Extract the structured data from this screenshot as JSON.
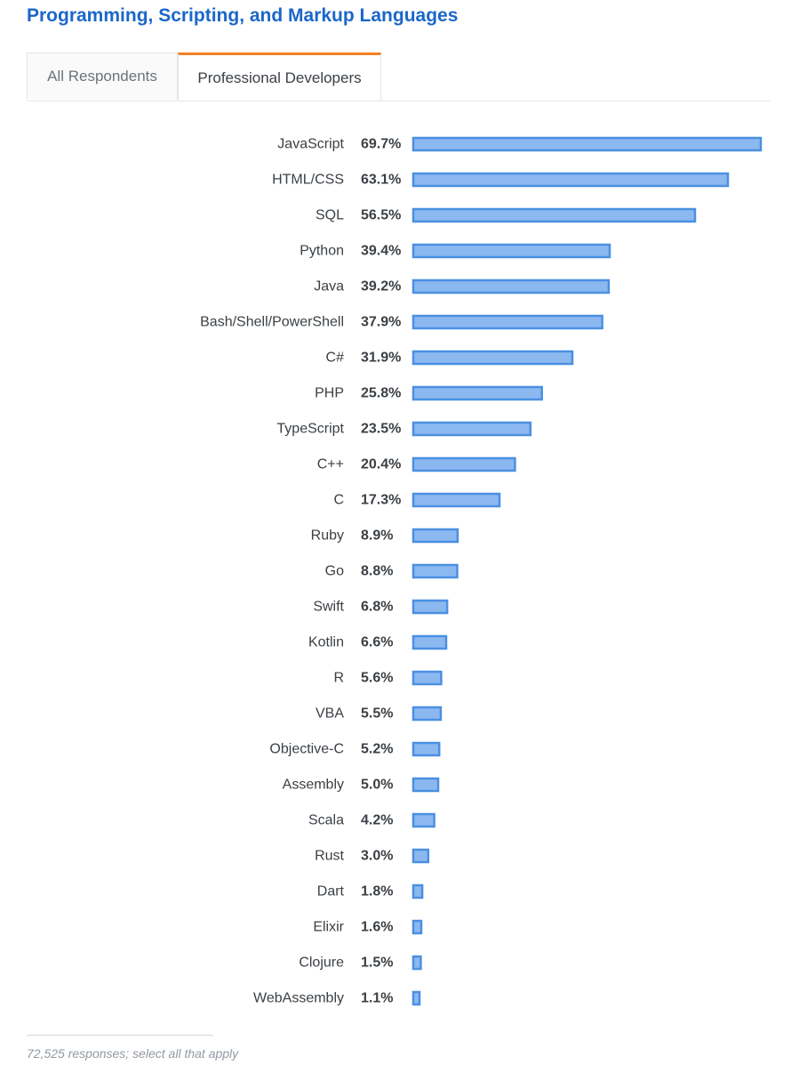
{
  "tabs": [
    {
      "label": "All Respondents",
      "active": false
    },
    {
      "label": "Professional Developers",
      "active": true
    }
  ],
  "footnote": "72,525 responses; select all that apply",
  "colors": {
    "title": "#1b67c9",
    "bar_fill": "#8cb8f0",
    "bar_stroke": "#4a90e2",
    "tab_accent": "#f48024"
  },
  "chart_data": {
    "type": "bar",
    "orientation": "horizontal",
    "title": "Programming, Scripting, and Markup Languages",
    "categories": [
      "JavaScript",
      "HTML/CSS",
      "SQL",
      "Python",
      "Java",
      "Bash/Shell/PowerShell",
      "C#",
      "PHP",
      "TypeScript",
      "C++",
      "C",
      "Ruby",
      "Go",
      "Swift",
      "Kotlin",
      "R",
      "VBA",
      "Objective-C",
      "Assembly",
      "Scala",
      "Rust",
      "Dart",
      "Elixir",
      "Clojure",
      "WebAssembly"
    ],
    "values": [
      69.7,
      63.1,
      56.5,
      39.4,
      39.2,
      37.9,
      31.9,
      25.8,
      23.5,
      20.4,
      17.3,
      8.9,
      8.8,
      6.8,
      6.6,
      5.6,
      5.5,
      5.2,
      5.0,
      4.2,
      3.0,
      1.8,
      1.6,
      1.5,
      1.1
    ],
    "value_labels": [
      "69.7%",
      "63.1%",
      "56.5%",
      "39.4%",
      "39.2%",
      "37.9%",
      "31.9%",
      "25.8%",
      "23.5%",
      "20.4%",
      "17.3%",
      "8.9%",
      "8.8%",
      "6.8%",
      "6.6%",
      "5.6%",
      "5.5%",
      "5.2%",
      "5.0%",
      "4.2%",
      "3.0%",
      "1.8%",
      "1.6%",
      "1.5%",
      "1.1%"
    ],
    "unit": "%",
    "xlim": [
      0,
      69.7
    ],
    "grid": false,
    "legend": "none"
  }
}
